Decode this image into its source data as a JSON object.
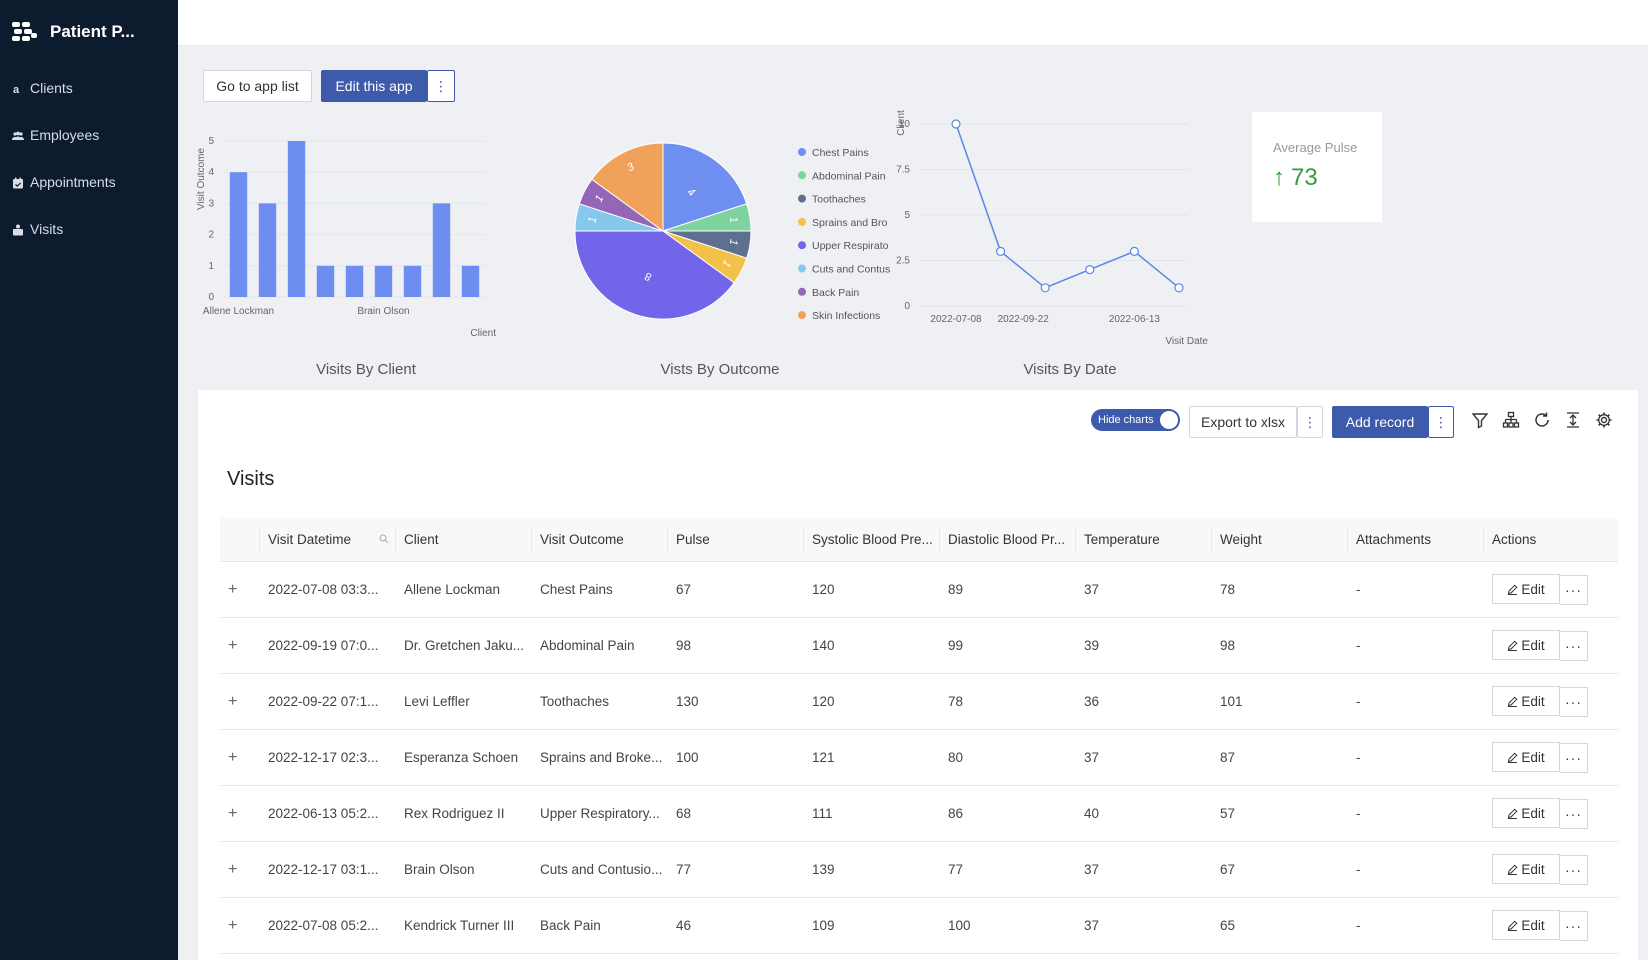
{
  "app": {
    "title": "Patient P...",
    "nav": [
      {
        "label": "Clients",
        "icon": "client-icon"
      },
      {
        "label": "Employees",
        "icon": "users-icon"
      },
      {
        "label": "Appointments",
        "icon": "calendar-icon"
      },
      {
        "label": "Visits",
        "icon": "visit-icon"
      }
    ]
  },
  "toolbar": {
    "go_to_app_list": "Go to app list",
    "edit_this_app": "Edit this app",
    "more": "⋮"
  },
  "charts": {
    "by_client_title": "Visits By Client",
    "by_outcome_title": "Vists By Outcome",
    "by_date_title": "Visits By Date"
  },
  "chart_data": [
    {
      "type": "bar",
      "title": "Visits By Client",
      "xlabel": "Client",
      "ylabel": "Visit Outcome",
      "ylim": [
        0,
        5
      ],
      "yticks": [
        0,
        1,
        2,
        3,
        4,
        5
      ],
      "x_tick_labels": [
        "Allene Lockman",
        "Brain Olson"
      ],
      "values": [
        4,
        3,
        5,
        1,
        1,
        1,
        1,
        3,
        1
      ],
      "color": "#6d8ef0"
    },
    {
      "type": "pie",
      "title": "Vists By Outcome",
      "legend_position": "right",
      "slices": [
        {
          "name": "Chest Pains",
          "value": 4,
          "color": "#6f8ff0"
        },
        {
          "name": "Abdominal Pain",
          "value": 1,
          "color": "#7fd3a0"
        },
        {
          "name": "Toothaches",
          "value": 1,
          "color": "#5f6f8f"
        },
        {
          "name": "Sprains and Bro",
          "value": 1,
          "color": "#f2c14a"
        },
        {
          "name": "Upper Respirato",
          "value": 8,
          "color": "#7265ea"
        },
        {
          "name": "Cuts and Contus",
          "value": 1,
          "color": "#86c8ec"
        },
        {
          "name": "Back Pain",
          "value": 1,
          "color": "#9566b8"
        },
        {
          "name": "Skin Infections",
          "value": 3,
          "color": "#f0a25a"
        }
      ]
    },
    {
      "type": "line",
      "title": "Visits By Date",
      "xlabel": "Visit Date",
      "ylabel": "Client",
      "ylim": [
        0,
        10
      ],
      "yticks": [
        0,
        2.5,
        5,
        7.5,
        10
      ],
      "ytick_labels": [
        "0",
        "2.5",
        "5",
        "7.5",
        "10"
      ],
      "x_tick_labels": [
        "2022-07-08",
        "2022-09-22",
        "2022-06-13"
      ],
      "values": [
        10,
        3,
        1,
        2,
        3,
        1
      ],
      "color": "#5b86e5"
    }
  ],
  "kpi": {
    "label": "Average Pulse",
    "arrow": "↑",
    "value": "73"
  },
  "table_panel": {
    "hide_charts": "Hide charts",
    "export": "Export to xlsx",
    "add_record": "Add record",
    "title": "Visits",
    "columns": [
      "Visit Datetime",
      "Client",
      "Visit Outcome",
      "Pulse",
      "Systolic Blood Pre...",
      "Diastolic Blood Pr...",
      "Temperature",
      "Weight",
      "Attachments",
      "Actions"
    ],
    "edit_label": "Edit",
    "more_label": "···",
    "rows": [
      {
        "dt": "2022-07-08 03:3...",
        "client": "Allene Lockman",
        "outcome": "Chest Pains",
        "pulse": "67",
        "sys": "120",
        "dia": "89",
        "temp": "37",
        "weight": "78",
        "att": "-"
      },
      {
        "dt": "2022-09-19 07:0...",
        "client": "Dr. Gretchen Jaku...",
        "outcome": "Abdominal Pain",
        "pulse": "98",
        "sys": "140",
        "dia": "99",
        "temp": "39",
        "weight": "98",
        "att": "-"
      },
      {
        "dt": "2022-09-22 07:1...",
        "client": "Levi Leffler",
        "outcome": "Toothaches",
        "pulse": "130",
        "sys": "120",
        "dia": "78",
        "temp": "36",
        "weight": "101",
        "att": "-"
      },
      {
        "dt": "2022-12-17 02:3...",
        "client": "Esperanza Schoen",
        "outcome": "Sprains and Broke...",
        "pulse": "100",
        "sys": "121",
        "dia": "80",
        "temp": "37",
        "weight": "87",
        "att": "-"
      },
      {
        "dt": "2022-06-13 05:2...",
        "client": "Rex Rodriguez II",
        "outcome": "Upper Respiratory...",
        "pulse": "68",
        "sys": "111",
        "dia": "86",
        "temp": "40",
        "weight": "57",
        "att": "-"
      },
      {
        "dt": "2022-12-17 03:1...",
        "client": "Brain Olson",
        "outcome": "Cuts and Contusio...",
        "pulse": "77",
        "sys": "139",
        "dia": "77",
        "temp": "37",
        "weight": "67",
        "att": "-"
      },
      {
        "dt": "2022-07-08 05:2...",
        "client": "Kendrick Turner III",
        "outcome": "Back Pain",
        "pulse": "46",
        "sys": "109",
        "dia": "100",
        "temp": "37",
        "weight": "65",
        "att": "-"
      }
    ]
  }
}
